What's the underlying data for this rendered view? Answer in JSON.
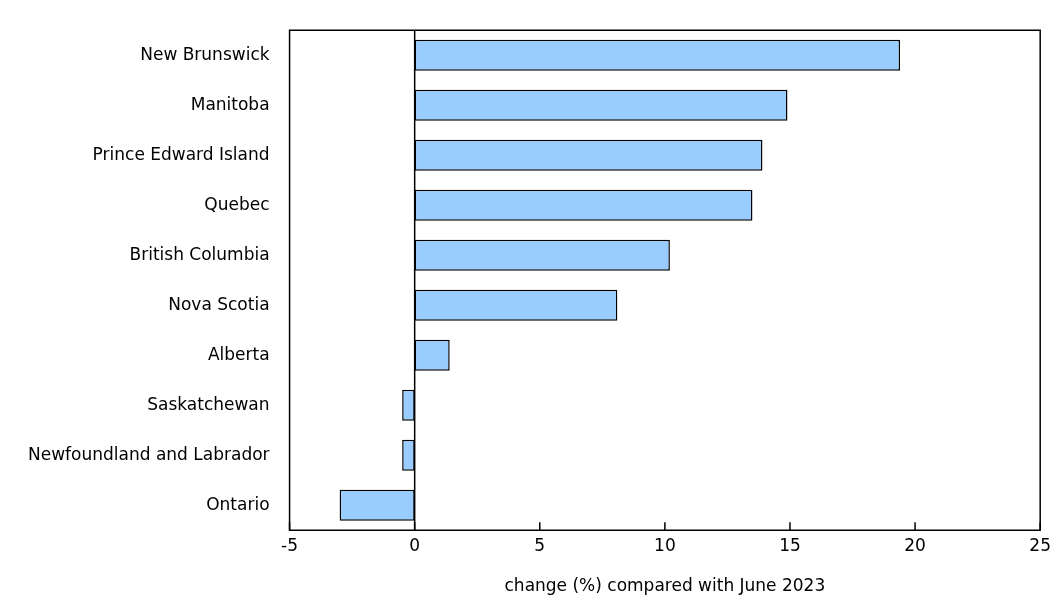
{
  "chart_data": {
    "type": "bar",
    "orientation": "horizontal",
    "categories": [
      "New Brunswick",
      "Manitoba",
      "Prince Edward Island",
      "Quebec",
      "British Columbia",
      "Nova Scotia",
      "Alberta",
      "Saskatchewan",
      "Newfoundland and Labrador",
      "Ontario"
    ],
    "values": [
      19.4,
      14.9,
      13.9,
      13.5,
      10.2,
      8.1,
      1.4,
      -0.5,
      -0.5,
      -3.0
    ],
    "color": "#99ccff",
    "xlabel": "change (%) compared with June 2023",
    "xlim": [
      -5,
      25
    ],
    "xticks": [
      -5,
      0,
      5,
      10,
      15,
      20,
      25
    ],
    "grid": false,
    "legend": false,
    "ref_lines": [
      {
        "axis": "x",
        "value": 0,
        "color": "#000000"
      }
    ]
  }
}
